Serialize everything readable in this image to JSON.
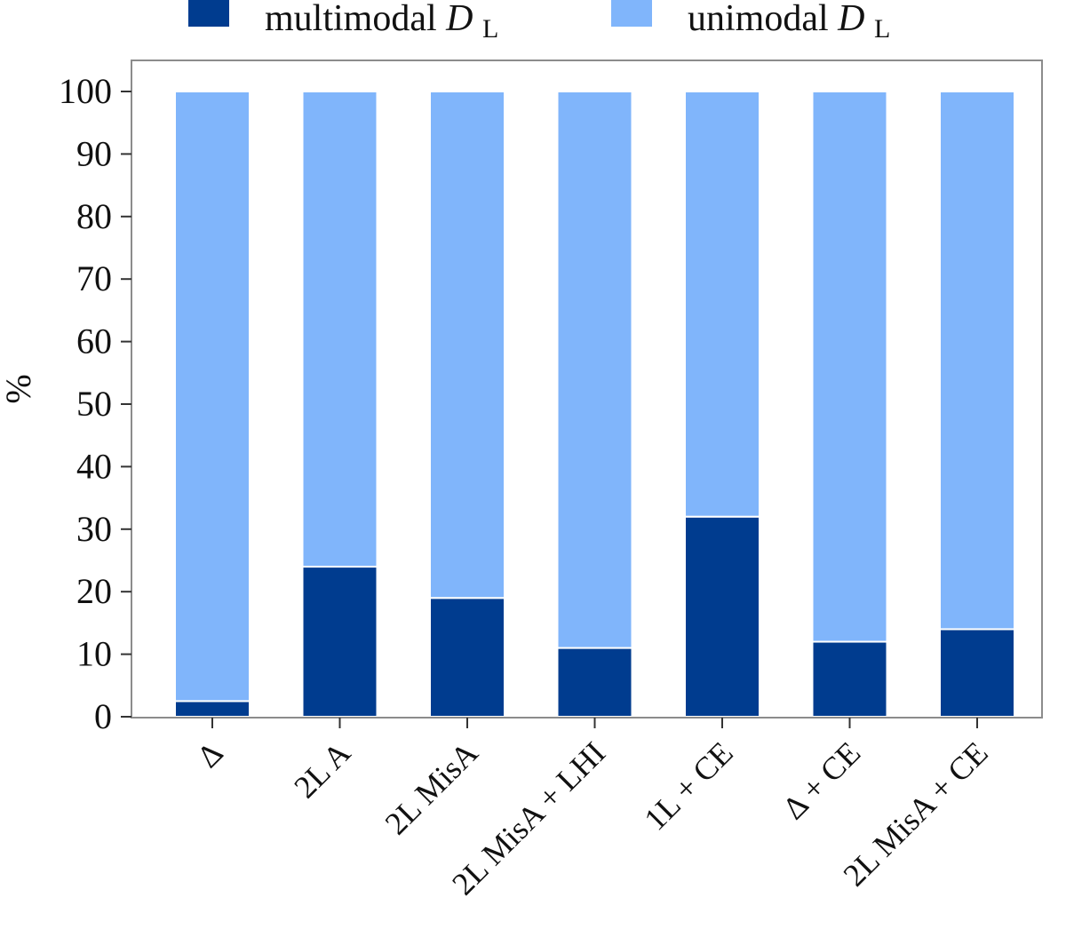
{
  "chart_data": {
    "type": "bar",
    "stacked": true,
    "title": "",
    "xlabel": "",
    "ylabel": "%",
    "ylim": [
      0,
      100
    ],
    "yticks": [
      0,
      10,
      20,
      30,
      40,
      50,
      60,
      70,
      80,
      90,
      100
    ],
    "categories": [
      "Δ",
      "2L A",
      "2L MisA",
      "2L MisA + LHI",
      "1L + CE",
      "Δ + CE",
      "2L MisA + CE"
    ],
    "series": [
      {
        "name": "multimodal",
        "subscript_var": "D",
        "subscript": "L",
        "color": "#003c8f",
        "values": [
          2.5,
          24,
          19,
          11,
          32,
          12,
          14
        ]
      },
      {
        "name": "unimodal",
        "subscript_var": "D",
        "subscript": "L",
        "color": "#80b5fb",
        "values": [
          97.5,
          76,
          81,
          89,
          68,
          88,
          86
        ]
      }
    ],
    "legend_position": "top-center",
    "grid": false
  }
}
